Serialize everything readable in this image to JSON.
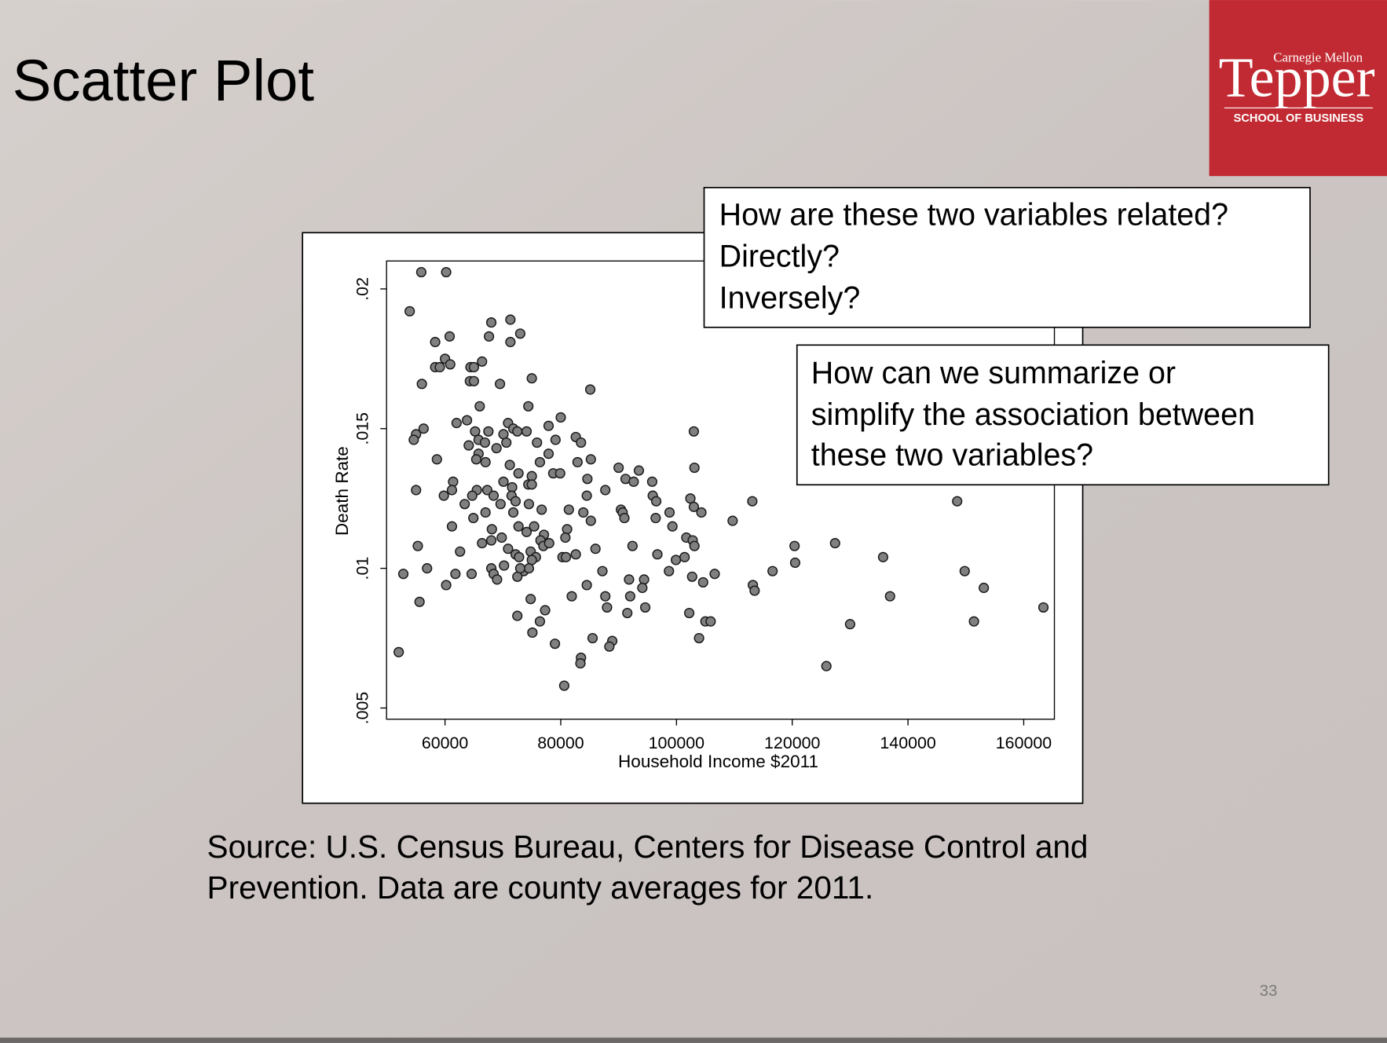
{
  "title": "Scatter Plot",
  "logo": {
    "university": "Carnegie Mellon",
    "name": "Tepper",
    "school": "SCHOOL OF BUSINESS"
  },
  "callouts": [
    {
      "lines": [
        "How are these two variables related?",
        "Directly?",
        "Inversely?"
      ]
    },
    {
      "lines": [
        "How can we summarize or",
        "simplify the association between",
        "these two variables?"
      ]
    }
  ],
  "source": [
    "Source: U.S. Census Bureau, Centers for Disease Control and",
    "Prevention. Data are county averages for 2011."
  ],
  "page_number": "33",
  "chart_data": {
    "type": "scatter",
    "x_label": "Household Income $2011",
    "y_label": "Death Rate",
    "color": "#808080",
    "xlim": [
      49900,
      165300
    ],
    "xticks": [
      60000,
      80000,
      100000,
      120000,
      140000,
      160000
    ],
    "ylim": [
      0.0046,
      0.021
    ],
    "yticks": [
      {
        "value": 0.005,
        "label": ".005"
      },
      {
        "value": 0.01,
        "label": ".01"
      },
      {
        "value": 0.015,
        "label": ".015"
      },
      {
        "value": 0.02,
        "label": ".02"
      }
    ],
    "x": [
      55900,
      60200,
      53900,
      68000,
      71300,
      67600,
      71300,
      73000,
      58300,
      60800,
      66400,
      60000,
      60900,
      58300,
      59100,
      64400,
      65000,
      64300,
      65000,
      69500,
      75000,
      56000,
      85100,
      66000,
      74400,
      80000,
      62000,
      63800,
      70900,
      55000,
      56300,
      54600,
      65200,
      67500,
      71800,
      70100,
      72500,
      74100,
      65800,
      64100,
      66900,
      68900,
      70600,
      77900,
      79100,
      75900,
      82600,
      83500,
      65800,
      67000,
      65400,
      77900,
      76400,
      58600,
      71200,
      72700,
      75000,
      78700,
      79900,
      82900,
      85200,
      90000,
      93500,
      103000,
      103100,
      61400,
      65500,
      70100,
      71600,
      74400,
      75000,
      84600,
      91200,
      92600,
      95800,
      55000,
      59800,
      61200,
      63400,
      64700,
      67300,
      68400,
      69600,
      71500,
      72200,
      74500,
      84500,
      87700,
      95900,
      96500,
      102400,
      113100,
      64900,
      67000,
      71800,
      76700,
      81400,
      83900,
      90400,
      90700,
      91000,
      96400,
      98800,
      103000,
      104300,
      109700,
      61200,
      68100,
      69800,
      72700,
      74100,
      75400,
      77100,
      76500,
      81100,
      80800,
      85200,
      99300,
      101700,
      102800,
      103100,
      55300,
      66400,
      70900,
      72200,
      74800,
      77000,
      78000,
      75700,
      80300,
      82600,
      86000,
      92400,
      96700,
      99900,
      101400,
      120400,
      127400,
      56900,
      52800,
      60200,
      61800,
      64600,
      68000,
      68400,
      69000,
      72800,
      73600,
      75000,
      72500,
      87200,
      84500,
      81900,
      91800,
      94400,
      94100,
      92000,
      98700,
      102700,
      104600,
      106600,
      113200,
      113500,
      116600,
      120500,
      135700,
      149800,
      153100,
      136900,
      55600,
      74800,
      77300,
      72500,
      76400,
      75100,
      87700,
      88000,
      94600,
      91500,
      102200,
      105000,
      105900,
      103900,
      130000,
      151400,
      163400,
      148500,
      52000,
      79000,
      83500,
      83400,
      85500,
      88900,
      88400,
      80600,
      125900,
      70200,
      62600,
      80900,
      74500,
      68000,
      73000
    ],
    "values": [
      0.0206,
      0.0206,
      0.0192,
      0.0188,
      0.0189,
      0.0183,
      0.0181,
      0.0184,
      0.0181,
      0.0183,
      0.0174,
      0.0175,
      0.0173,
      0.0172,
      0.0172,
      0.0172,
      0.0172,
      0.0167,
      0.0167,
      0.0166,
      0.0168,
      0.0166,
      0.0164,
      0.0158,
      0.0158,
      0.0154,
      0.0152,
      0.0153,
      0.0152,
      0.0148,
      0.015,
      0.0146,
      0.0149,
      0.0149,
      0.015,
      0.0148,
      0.0149,
      0.0149,
      0.0146,
      0.0144,
      0.0145,
      0.0143,
      0.0145,
      0.0151,
      0.0146,
      0.0145,
      0.0147,
      0.0145,
      0.0141,
      0.0138,
      0.0139,
      0.0141,
      0.0138,
      0.0139,
      0.0137,
      0.0134,
      0.0133,
      0.0134,
      0.0134,
      0.0138,
      0.0139,
      0.0136,
      0.0135,
      0.0149,
      0.0136,
      0.0131,
      0.0128,
      0.0131,
      0.0129,
      0.013,
      0.013,
      0.0132,
      0.0132,
      0.0131,
      0.0131,
      0.0128,
      0.0126,
      0.0128,
      0.0123,
      0.0126,
      0.0128,
      0.0126,
      0.0123,
      0.0126,
      0.0124,
      0.0123,
      0.0126,
      0.0128,
      0.0126,
      0.0124,
      0.0125,
      0.0124,
      0.0118,
      0.012,
      0.012,
      0.0121,
      0.0121,
      0.012,
      0.0121,
      0.012,
      0.0118,
      0.0118,
      0.012,
      0.0122,
      0.012,
      0.0117,
      0.0115,
      0.0114,
      0.0111,
      0.0115,
      0.0113,
      0.0115,
      0.0112,
      0.011,
      0.0114,
      0.0111,
      0.0117,
      0.0115,
      0.0111,
      0.011,
      0.0108,
      0.0108,
      0.0109,
      0.0107,
      0.0105,
      0.0106,
      0.0108,
      0.0109,
      0.0104,
      0.0104,
      0.0105,
      0.0107,
      0.0108,
      0.0105,
      0.0103,
      0.0104,
      0.0108,
      0.0109,
      0.01,
      0.0098,
      0.0094,
      0.0098,
      0.0098,
      0.01,
      0.0098,
      0.0096,
      0.0104,
      0.0099,
      0.0103,
      0.0097,
      0.0099,
      0.0094,
      0.009,
      0.0096,
      0.0096,
      0.0093,
      0.009,
      0.0099,
      0.0097,
      0.0095,
      0.0098,
      0.0094,
      0.0092,
      0.0099,
      0.0102,
      0.0104,
      0.0099,
      0.0093,
      0.009,
      0.0088,
      0.0089,
      0.0085,
      0.0083,
      0.0081,
      0.0077,
      0.009,
      0.0086,
      0.0086,
      0.0084,
      0.0084,
      0.0081,
      0.0081,
      0.0075,
      0.008,
      0.0081,
      0.0086,
      0.0124,
      0.007,
      0.0073,
      0.0068,
      0.0066,
      0.0075,
      0.0074,
      0.0072,
      0.0058,
      0.0065,
      0.0101,
      0.0106,
      0.0104,
      0.01,
      0.011,
      0.01
    ]
  }
}
